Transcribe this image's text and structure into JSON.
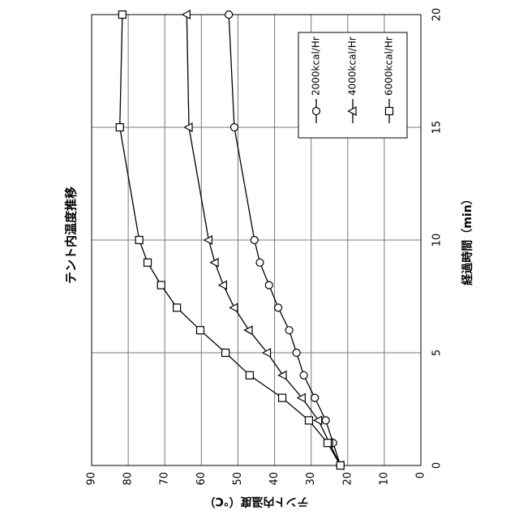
{
  "chart_data": {
    "type": "line",
    "title": "テント内温度推移",
    "x_label": "経過時間（min）",
    "y_label": "テント内温度（℃）",
    "x": [
      0,
      1,
      2,
      3,
      4,
      5,
      6,
      7,
      8,
      9,
      10,
      15,
      20
    ],
    "series": [
      {
        "name": "2000kcal/Hr",
        "marker": "circle",
        "color": "#000000",
        "values": [
          22,
          24,
          26,
          29,
          32,
          34,
          36,
          39,
          41.5,
          44,
          45.5,
          51,
          52.5
        ]
      },
      {
        "name": "4000kcal/Hr",
        "marker": "triangle",
        "color": "#000000",
        "values": [
          22,
          25,
          28,
          32.5,
          37.7,
          42,
          47,
          51,
          54,
          56.3,
          58,
          63.4,
          64
        ]
      },
      {
        "name": "6000kcal/Hr",
        "marker": "square",
        "color": "#000000",
        "values": [
          22,
          25.5,
          30.6,
          37.9,
          46.8,
          53.4,
          60.3,
          66.7,
          71,
          74.7,
          77,
          82.3,
          81.6
        ]
      }
    ],
    "xlim": [
      0,
      20
    ],
    "xticks": [
      0,
      5,
      10,
      15,
      20
    ],
    "ylim": [
      0,
      90
    ],
    "yticks": [
      0,
      10,
      20,
      30,
      40,
      50,
      60,
      70,
      80,
      90
    ],
    "grid": true,
    "rotation": -90
  }
}
